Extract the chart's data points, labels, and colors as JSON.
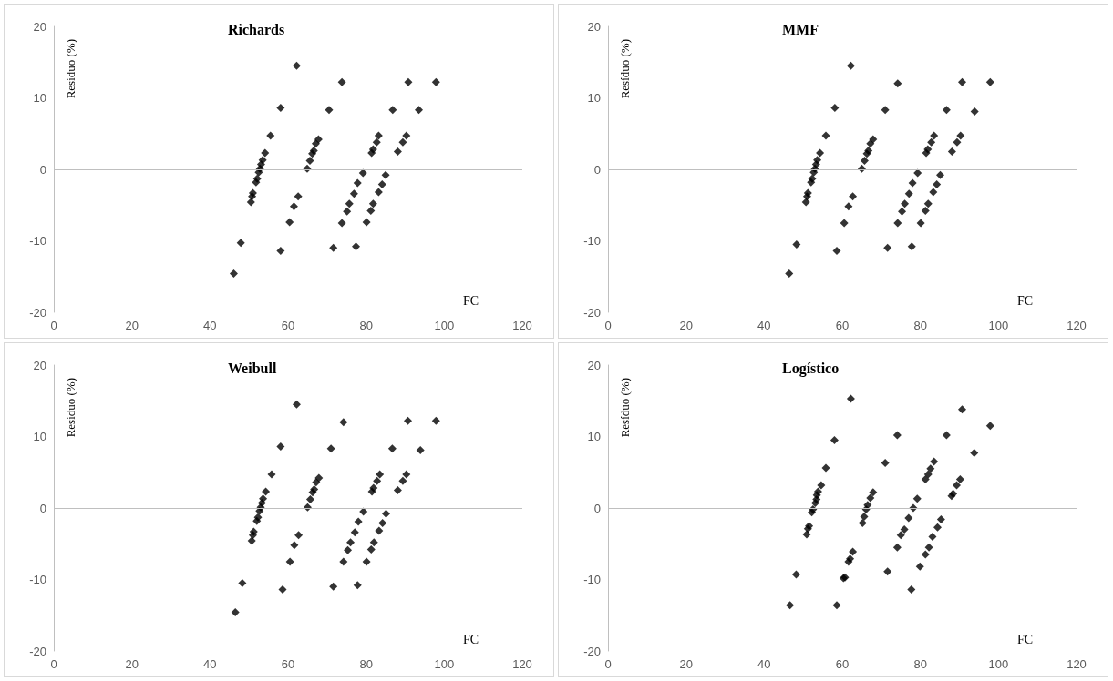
{
  "chart_data": [
    {
      "type": "scatter",
      "title": "Richards",
      "xlabel": "FC",
      "ylabel": "Resíduo (%)",
      "marker": "diamond",
      "color": "#000000",
      "ref_lines": [
        {
          "axis": "y",
          "value": 0,
          "color": "#bfbfbf"
        }
      ],
      "xlim": [
        0,
        120
      ],
      "xticks": [
        0,
        20,
        40,
        60,
        80,
        100,
        120
      ],
      "ylim": [
        -20,
        20
      ],
      "yticks": [
        -20,
        -10,
        0,
        10,
        20
      ],
      "x": [
        46.1,
        47.9,
        50.5,
        50.8,
        51.0,
        51.8,
        52.1,
        52.5,
        52.8,
        53.1,
        53.5,
        54.1,
        55.5,
        58.1,
        58.1,
        60.4,
        61.5,
        62.6,
        62.2,
        64.9,
        65.6,
        66.2,
        66.6,
        67.1,
        67.8,
        70.5,
        71.6,
        73.8,
        73.8,
        75.1,
        75.7,
        76.9,
        77.8,
        79.2,
        77.4,
        80.1,
        81.2,
        81.8,
        83.2,
        84.1,
        85.0,
        81.4,
        81.8,
        82.7,
        83.2,
        86.8,
        88.1,
        89.4,
        90.3,
        90.8,
        93.5,
        97.9
      ],
      "values": [
        -14.6,
        -10.3,
        -4.6,
        -3.8,
        -3.3,
        -1.8,
        -1.3,
        -0.4,
        0.1,
        0.7,
        1.3,
        2.3,
        4.7,
        8.6,
        -11.4,
        -7.4,
        -5.2,
        -3.8,
        14.5,
        0.1,
        1.2,
        2.2,
        2.6,
        3.6,
        4.2,
        8.3,
        -11.0,
        12.2,
        -7.5,
        -5.9,
        -4.8,
        -3.4,
        -1.9,
        -0.5,
        -10.8,
        -7.4,
        -5.8,
        -4.8,
        -3.2,
        -2.1,
        -0.8,
        2.3,
        2.8,
        3.8,
        4.7,
        8.3,
        2.5,
        3.8,
        4.7,
        12.2,
        8.3,
        12.2
      ]
    },
    {
      "type": "scatter",
      "title": "MMF",
      "xlabel": "FC",
      "ylabel": "Resíduo (%)",
      "marker": "diamond",
      "color": "#000000",
      "ref_lines": [
        {
          "axis": "y",
          "value": 0,
          "color": "#bfbfbf"
        }
      ],
      "xlim": [
        0,
        120
      ],
      "xticks": [
        0,
        20,
        40,
        60,
        80,
        100,
        120
      ],
      "ylim": [
        -20,
        20
      ],
      "yticks": [
        -20,
        -10,
        0,
        10,
        20
      ],
      "x": [
        46.4,
        48.3,
        50.7,
        51.0,
        51.2,
        52.0,
        52.3,
        52.7,
        53.0,
        53.3,
        53.6,
        54.3,
        55.8,
        58.1,
        58.6,
        60.5,
        61.6,
        62.7,
        62.2,
        65.0,
        65.7,
        66.3,
        66.7,
        67.2,
        67.9,
        71.0,
        71.6,
        74.2,
        74.2,
        75.3,
        76.0,
        77.1,
        78.0,
        79.3,
        77.8,
        80.1,
        81.3,
        82.0,
        83.3,
        84.2,
        85.1,
        81.5,
        81.9,
        82.8,
        83.5,
        86.7,
        88.1,
        89.4,
        90.3,
        90.7,
        93.9,
        97.9
      ],
      "values": [
        -14.6,
        -10.5,
        -4.6,
        -3.8,
        -3.3,
        -1.8,
        -1.3,
        -0.4,
        0.1,
        0.7,
        1.3,
        2.3,
        4.7,
        8.6,
        -11.4,
        -7.5,
        -5.2,
        -3.8,
        14.5,
        0.1,
        1.2,
        2.2,
        2.6,
        3.6,
        4.2,
        8.3,
        -11.0,
        12.0,
        -7.5,
        -5.9,
        -4.8,
        -3.4,
        -1.9,
        -0.5,
        -10.8,
        -7.5,
        -5.8,
        -4.8,
        -3.2,
        -2.1,
        -0.8,
        2.3,
        2.8,
        3.8,
        4.7,
        8.3,
        2.5,
        3.8,
        4.7,
        12.2,
        8.1,
        12.2
      ]
    },
    {
      "type": "scatter",
      "title": "Weibull",
      "xlabel": "FC",
      "ylabel": "Resíduo (%)",
      "marker": "diamond",
      "color": "#000000",
      "ref_lines": [
        {
          "axis": "y",
          "value": 0,
          "color": "#bfbfbf"
        }
      ],
      "xlim": [
        0,
        120
      ],
      "xticks": [
        0,
        20,
        40,
        60,
        80,
        100,
        120
      ],
      "ylim": [
        -20,
        20
      ],
      "yticks": [
        -20,
        -10,
        0,
        10,
        20
      ],
      "x": [
        46.5,
        48.3,
        50.7,
        51.0,
        51.2,
        52.0,
        52.3,
        52.7,
        53.0,
        53.3,
        53.6,
        54.3,
        55.8,
        58.1,
        58.6,
        60.5,
        61.6,
        62.7,
        62.2,
        65.0,
        65.7,
        66.3,
        66.7,
        67.2,
        67.9,
        71.0,
        71.6,
        74.2,
        74.2,
        75.3,
        76.0,
        77.1,
        78.0,
        79.3,
        77.8,
        80.1,
        81.3,
        82.0,
        83.3,
        84.2,
        85.1,
        81.5,
        81.9,
        82.8,
        83.5,
        86.7,
        88.1,
        89.4,
        90.3,
        90.7,
        93.9,
        97.9
      ],
      "values": [
        -14.6,
        -10.5,
        -4.6,
        -3.8,
        -3.3,
        -1.8,
        -1.3,
        -0.4,
        0.1,
        0.7,
        1.3,
        2.3,
        4.7,
        8.6,
        -11.4,
        -7.5,
        -5.2,
        -3.8,
        14.5,
        0.1,
        1.2,
        2.2,
        2.6,
        3.6,
        4.2,
        8.3,
        -11.0,
        12.0,
        -7.5,
        -5.9,
        -4.8,
        -3.4,
        -1.9,
        -0.5,
        -10.8,
        -7.5,
        -5.8,
        -4.8,
        -3.2,
        -2.1,
        -0.8,
        2.3,
        2.8,
        3.8,
        4.7,
        8.3,
        2.5,
        3.8,
        4.7,
        12.2,
        8.1,
        12.2
      ]
    },
    {
      "type": "scatter",
      "title": "Logístico",
      "xlabel": "FC",
      "ylabel": "Resíduo (%)",
      "marker": "diamond",
      "color": "#000000",
      "ref_lines": [
        {
          "axis": "y",
          "value": 0,
          "color": "#bfbfbf"
        }
      ],
      "xlim": [
        0,
        120
      ],
      "xticks": [
        0,
        20,
        40,
        60,
        80,
        100,
        120
      ],
      "ylim": [
        -20,
        20
      ],
      "yticks": [
        -20,
        -10,
        0,
        10,
        20
      ],
      "x": [
        46.6,
        48.2,
        50.9,
        51.2,
        51.5,
        52.2,
        52.5,
        53.1,
        53.4,
        53.5,
        53.8,
        54.6,
        55.8,
        58.0,
        58.6,
        60.3,
        60.7,
        61.6,
        62.0,
        62.7,
        62.2,
        65.2,
        65.6,
        66.1,
        66.5,
        67.2,
        67.9,
        71.0,
        71.6,
        74.1,
        74.1,
        75.0,
        75.9,
        77.0,
        78.2,
        79.2,
        77.7,
        79.9,
        81.3,
        82.2,
        83.1,
        84.4,
        85.3,
        81.3,
        82.0,
        82.6,
        83.5,
        86.7,
        88.0,
        88.4,
        89.3,
        90.2,
        90.7,
        93.8,
        97.9
      ],
      "values": [
        -13.6,
        -9.3,
        -3.7,
        -2.9,
        -2.5,
        -0.6,
        -0.2,
        0.7,
        1.2,
        1.8,
        2.3,
        3.2,
        5.6,
        9.5,
        -13.6,
        -9.8,
        -9.7,
        -7.5,
        -7.1,
        -6.1,
        15.3,
        -2.1,
        -1.2,
        -0.2,
        0.4,
        1.4,
        2.2,
        6.3,
        -8.9,
        10.2,
        -5.5,
        -3.8,
        -3.0,
        -1.4,
        0.0,
        1.3,
        -11.4,
        -8.2,
        -6.5,
        -5.5,
        -4.0,
        -2.7,
        -1.6,
        4.0,
        4.7,
        5.5,
        6.5,
        10.2,
        1.7,
        2.0,
        3.2,
        4.0,
        13.8,
        7.7,
        11.5
      ]
    }
  ]
}
